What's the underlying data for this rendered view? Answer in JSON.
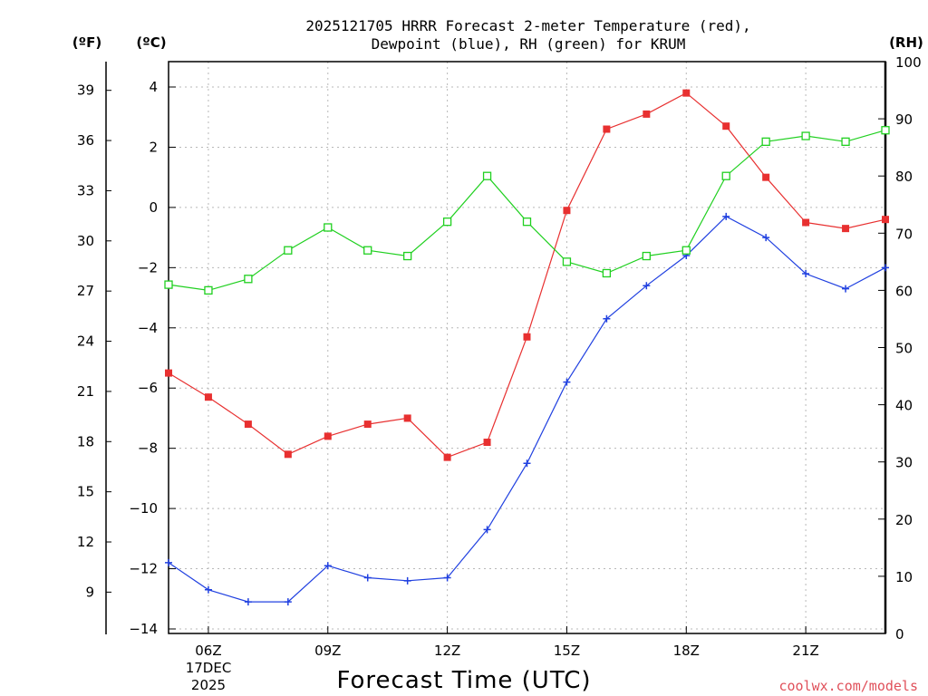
{
  "chart_data": {
    "type": "line",
    "title_line1": "2025121705 HRRR Forecast 2-meter Temperature (red),",
    "title_line2": "Dewpoint (blue), RH (green) for KRUM",
    "xlabel": "Forecast Time (UTC)",
    "credit": "coolwx.com/models",
    "left_outer_unit": "(ºF)",
    "left_inner_unit": "(ºC)",
    "right_unit": "(RH)",
    "date_label_line1": "17DEC",
    "date_label_line2": "2025",
    "x": [
      5,
      6,
      7,
      8,
      9,
      10,
      11,
      12,
      13,
      14,
      15,
      16,
      17,
      18,
      19,
      20,
      21,
      22,
      23
    ],
    "x_ticks": [
      {
        "value": 6,
        "label": "06Z"
      },
      {
        "value": 9,
        "label": "09Z"
      },
      {
        "value": 12,
        "label": "12Z"
      },
      {
        "value": 15,
        "label": "15Z"
      },
      {
        "value": 18,
        "label": "18Z"
      },
      {
        "value": 21,
        "label": "21Z"
      }
    ],
    "xlim": [
      5,
      23
    ],
    "celsius_axis": {
      "ylim": [
        -14,
        5
      ],
      "ticks": [
        4,
        2,
        0,
        -2,
        -4,
        -6,
        -8,
        -10,
        -12,
        -14
      ],
      "tick_labels": [
        "4",
        "2",
        "0",
        "−2",
        "−4",
        "−6",
        "−8",
        "−10",
        "−12",
        "−14"
      ]
    },
    "fahrenheit_axis": {
      "ticks": [
        39,
        36,
        33,
        30,
        27,
        24,
        21,
        18,
        15,
        12,
        9
      ],
      "tick_labels": [
        "39",
        "36",
        "33",
        "30",
        "27",
        "24",
        "21",
        "18",
        "15",
        "12",
        "9"
      ]
    },
    "rh_axis": {
      "ylim": [
        0,
        100
      ],
      "ticks": [
        0,
        10,
        20,
        30,
        40,
        50,
        60,
        70,
        80,
        90,
        100
      ],
      "tick_labels": [
        "0",
        "10",
        "20",
        "30",
        "40",
        "50",
        "60",
        "70",
        "80",
        "90",
        "100"
      ]
    },
    "series": [
      {
        "name": "Temperature",
        "axis": "celsius",
        "color": "#e83030",
        "marker": "filled-square",
        "values": [
          -5.5,
          -6.3,
          -7.2,
          -8.2,
          -7.6,
          -7.2,
          -7.0,
          -8.3,
          -7.8,
          -4.3,
          -0.1,
          2.6,
          3.1,
          3.8,
          2.7,
          1.0,
          -0.5,
          -0.7,
          -0.4
        ]
      },
      {
        "name": "Dewpoint",
        "axis": "celsius",
        "color": "#2040e0",
        "marker": "plus",
        "values": [
          -11.8,
          -12.7,
          -13.1,
          -13.1,
          -11.9,
          -12.3,
          -12.4,
          -12.3,
          -10.7,
          -8.5,
          -5.8,
          -3.7,
          -2.6,
          -1.6,
          -0.3,
          -1.0,
          -2.2,
          -2.7,
          -2.0
        ]
      },
      {
        "name": "RH",
        "axis": "rh",
        "color": "#20d020",
        "marker": "open-square",
        "values": [
          61,
          60,
          62,
          67,
          71,
          67,
          66,
          72,
          80,
          72,
          65,
          63,
          66,
          67,
          80,
          86,
          87,
          86,
          88
        ]
      }
    ]
  }
}
